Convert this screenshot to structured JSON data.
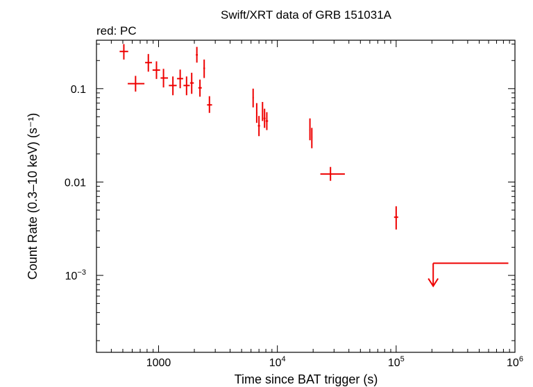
{
  "chart_data": {
    "type": "scatter",
    "title": "Swift/XRT data of GRB 151031A",
    "subtitle": "red: PC",
    "xlabel": "Time since BAT trigger (s)",
    "ylabel": "Count Rate (0.3–10 keV) (s⁻¹)",
    "xscale": "log",
    "yscale": "log",
    "xlim": [
      300,
      1000000
    ],
    "ylim": [
      0.00015,
      0.33
    ],
    "grid": false,
    "x_tick_labels": [
      {
        "value": 1000,
        "text": "1000"
      },
      {
        "value": 10000,
        "base": "10",
        "exp": "4"
      },
      {
        "value": 100000,
        "base": "10",
        "exp": "5"
      },
      {
        "value": 1000000,
        "base": "10",
        "exp": "6"
      }
    ],
    "y_tick_labels": [
      {
        "value": 0.1,
        "text": "0.1"
      },
      {
        "value": 0.01,
        "text": "0.01"
      },
      {
        "value": 0.001,
        "base": "10",
        "exp": "−3"
      }
    ],
    "series": [
      {
        "name": "PC",
        "color": "#ee0000",
        "points": [
          {
            "x": 510,
            "xlo": 470,
            "xhi": 555,
            "y": 0.25,
            "ylo": 0.205,
            "yhi": 0.3
          },
          {
            "x": 640,
            "xlo": 550,
            "xhi": 760,
            "y": 0.113,
            "ylo": 0.093,
            "yhi": 0.137
          },
          {
            "x": 820,
            "xlo": 770,
            "xhi": 880,
            "y": 0.19,
            "ylo": 0.152,
            "yhi": 0.235
          },
          {
            "x": 960,
            "xlo": 890,
            "xhi": 1030,
            "y": 0.158,
            "ylo": 0.127,
            "yhi": 0.196
          },
          {
            "x": 1100,
            "xlo": 1040,
            "xhi": 1200,
            "y": 0.13,
            "ylo": 0.103,
            "yhi": 0.163
          },
          {
            "x": 1320,
            "xlo": 1220,
            "xhi": 1420,
            "y": 0.108,
            "ylo": 0.085,
            "yhi": 0.135
          },
          {
            "x": 1520,
            "xlo": 1430,
            "xhi": 1610,
            "y": 0.128,
            "ylo": 0.101,
            "yhi": 0.16
          },
          {
            "x": 1720,
            "xlo": 1620,
            "xhi": 1830,
            "y": 0.108,
            "ylo": 0.085,
            "yhi": 0.135
          },
          {
            "x": 1900,
            "xlo": 1840,
            "xhi": 1980,
            "y": 0.115,
            "ylo": 0.088,
            "yhi": 0.148
          },
          {
            "x": 2100,
            "xlo": 2060,
            "xhi": 2140,
            "y": 0.23,
            "ylo": 0.19,
            "yhi": 0.28
          },
          {
            "x": 2230,
            "xlo": 2160,
            "xhi": 2310,
            "y": 0.102,
            "ylo": 0.082,
            "yhi": 0.125
          },
          {
            "x": 2420,
            "xlo": 2380,
            "xhi": 2460,
            "y": 0.165,
            "ylo": 0.13,
            "yhi": 0.205
          },
          {
            "x": 2680,
            "xlo": 2560,
            "xhi": 2820,
            "y": 0.067,
            "ylo": 0.055,
            "yhi": 0.083
          },
          {
            "x": 6250,
            "xlo": 6180,
            "xhi": 6330,
            "y": 0.08,
            "ylo": 0.063,
            "yhi": 0.1
          },
          {
            "x": 6700,
            "xlo": 6630,
            "xhi": 6780,
            "y": 0.055,
            "ylo": 0.043,
            "yhi": 0.07
          },
          {
            "x": 7000,
            "xlo": 6850,
            "xhi": 7150,
            "y": 0.04,
            "ylo": 0.031,
            "yhi": 0.051
          },
          {
            "x": 7500,
            "xlo": 7420,
            "xhi": 7580,
            "y": 0.057,
            "ylo": 0.045,
            "yhi": 0.072
          },
          {
            "x": 7800,
            "xlo": 7650,
            "xhi": 7950,
            "y": 0.048,
            "ylo": 0.038,
            "yhi": 0.061
          },
          {
            "x": 8150,
            "xlo": 7970,
            "xhi": 8350,
            "y": 0.045,
            "ylo": 0.036,
            "yhi": 0.056
          },
          {
            "x": 18800,
            "xlo": 18600,
            "xhi": 19000,
            "y": 0.036,
            "ylo": 0.028,
            "yhi": 0.048
          },
          {
            "x": 19500,
            "xlo": 19300,
            "xhi": 19700,
            "y": 0.03,
            "ylo": 0.023,
            "yhi": 0.038
          },
          {
            "x": 28000,
            "xlo": 23000,
            "xhi": 37000,
            "y": 0.0122,
            "ylo": 0.0103,
            "yhi": 0.0145
          },
          {
            "x": 100000,
            "xlo": 96000,
            "xhi": 104000,
            "y": 0.0042,
            "ylo": 0.0031,
            "yhi": 0.0055
          }
        ],
        "upper_limit": {
          "xlo": 205000,
          "xhi": 880000,
          "y": 0.00135
        }
      }
    ]
  }
}
